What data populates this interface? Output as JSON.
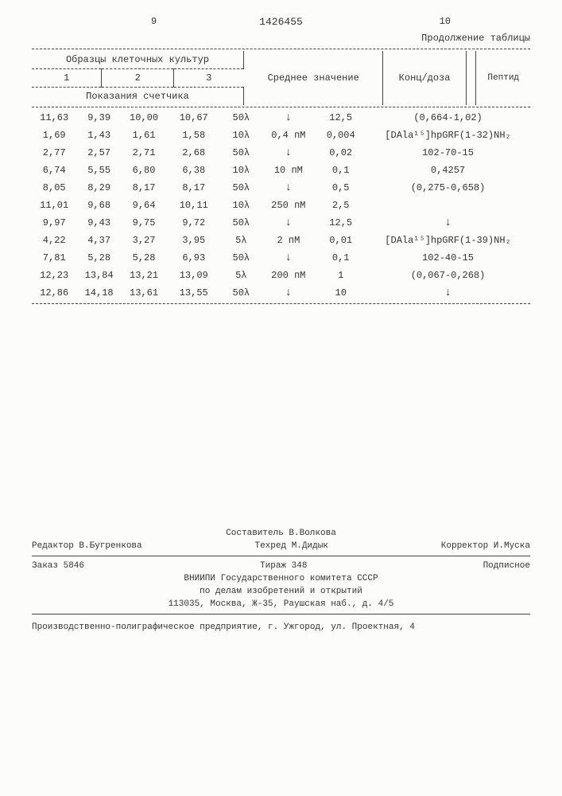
{
  "page_left": "9",
  "page_right": "10",
  "doc_number": "1426455",
  "continuation": "Продолжение таблицы",
  "headers": {
    "samples": "Образцы клеточных культур",
    "c1": "1",
    "c2": "2",
    "c3": "3",
    "avg": "Среднее значение",
    "conc": "Конц/доза",
    "peptide": "Пептид",
    "counter": "Показания счетчика"
  },
  "rows": [
    {
      "c1": "11,63",
      "c2": "9,39",
      "c3": "10,00",
      "avg": "10,67",
      "vol": "50λ",
      "conc": "↓",
      "dose": "12,5",
      "pep": "(0,664-1,02)"
    },
    {
      "c1": "1,69",
      "c2": "1,43",
      "c3": "1,61",
      "avg": "1,58",
      "vol": "10λ",
      "conc": "0,4 пМ",
      "dose": "0,004",
      "pep": "[DAla¹⁵]hpGRF(1-32)NH₂"
    },
    {
      "c1": "2,77",
      "c2": "2,57",
      "c3": "2,71",
      "avg": "2,68",
      "vol": "50λ",
      "conc": "↓",
      "dose": "0,02",
      "pep": "102-70-15"
    },
    {
      "c1": "6,74",
      "c2": "5,55",
      "c3": "6,80",
      "avg": "6,38",
      "vol": "10λ",
      "conc": "10 пМ",
      "dose": "0,1",
      "pep": "0,4257"
    },
    {
      "c1": "8,05",
      "c2": "8,29",
      "c3": "8,17",
      "avg": "8,17",
      "vol": "50λ",
      "conc": "↓",
      "dose": "0,5",
      "pep": "(0,275-0,658)"
    },
    {
      "c1": "11,01",
      "c2": "9,68",
      "c3": "9,64",
      "avg": "10,11",
      "vol": "10λ",
      "conc": "250 пМ",
      "dose": "2,5",
      "pep": ""
    },
    {
      "c1": "9,97",
      "c2": "9,43",
      "c3": "9,75",
      "avg": "9,72",
      "vol": "50λ",
      "conc": "↓",
      "dose": "12,5",
      "pep": "↓"
    },
    {
      "c1": "4,22",
      "c2": "4,37",
      "c3": "3,27",
      "avg": "3,95",
      "vol": "5λ",
      "conc": "2 пМ",
      "dose": "0,01",
      "pep": "[DAla¹⁵]hpGRF(1-39)NH₂"
    },
    {
      "c1": "7,81",
      "c2": "5,28",
      "c3": "5,28",
      "avg": "6,93",
      "vol": "50λ",
      "conc": "↓",
      "dose": "0,1",
      "pep": "102-40-15"
    },
    {
      "c1": "12,23",
      "c2": "13,84",
      "c3": "13,21",
      "avg": "13,09",
      "vol": "5λ",
      "conc": "200 пМ",
      "dose": "1",
      "pep": "(0,067-0,268)"
    },
    {
      "c1": "12,86",
      "c2": "14,18",
      "c3": "13,61",
      "avg": "13,55",
      "vol": "50λ",
      "conc": "↓",
      "dose": "10",
      "pep": "↓"
    }
  ],
  "footer": {
    "compiler_label": "Составитель В.Волкова",
    "editor": "Редактор В.Бугренкова",
    "tech": "Техред М.Дидык",
    "corrector": "Корректор И.Муска",
    "order": "Заказ 5846",
    "copies": "Тираж 348",
    "subscription": "Подписное",
    "org1": "ВНИИПИ Государственного комитета СССР",
    "org2": "по делам изобретений и открытий",
    "address": "113035, Москва, Ж-35, Раушская наб., д. 4/5",
    "printer": "Производственно-полиграфическое предприятие, г. Ужгород, ул. Проектная, 4"
  }
}
